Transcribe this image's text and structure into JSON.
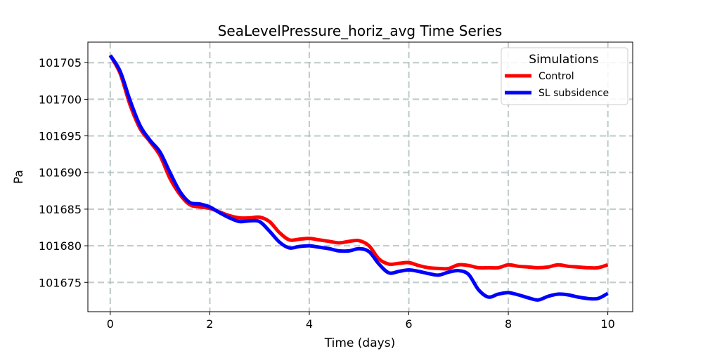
{
  "chart_data": {
    "type": "line",
    "title": "SeaLevelPressure_horiz_avg Time Series",
    "xlabel": "Time (days)",
    "ylabel": "Pa",
    "xlim": [
      -0.45,
      10.5
    ],
    "ylim": [
      101671.0,
      101707.8
    ],
    "xticks": [
      0,
      2,
      4,
      6,
      8,
      10
    ],
    "xtick_labels": [
      "0",
      "2",
      "4",
      "6",
      "8",
      "10"
    ],
    "yticks": [
      101675,
      101680,
      101685,
      101690,
      101695,
      101700,
      101705
    ],
    "ytick_labels": [
      "101675",
      "101680",
      "101685",
      "101690",
      "101695",
      "101700",
      "101705"
    ],
    "grid": true,
    "legend": {
      "title": "Simulations",
      "placement": "top-right"
    },
    "series": [
      {
        "name": "Control",
        "color": "#ff0000",
        "x": [
          0.0,
          0.2,
          0.4,
          0.6,
          0.8,
          1.0,
          1.2,
          1.4,
          1.6,
          1.8,
          2.0,
          2.2,
          2.4,
          2.6,
          2.8,
          3.0,
          3.2,
          3.4,
          3.6,
          3.8,
          4.0,
          4.2,
          4.4,
          4.6,
          4.8,
          5.0,
          5.2,
          5.4,
          5.6,
          5.8,
          6.0,
          6.2,
          6.4,
          6.6,
          6.8,
          7.0,
          7.2,
          7.4,
          7.6,
          7.8,
          8.0,
          8.2,
          8.4,
          8.6,
          8.8,
          9.0,
          9.2,
          9.4,
          9.6,
          9.8,
          10.0
        ],
        "y": [
          101706.0,
          101703.5,
          101699.2,
          101696.0,
          101694.2,
          101692.3,
          101689.2,
          101687.0,
          101685.6,
          101685.3,
          101685.1,
          101684.6,
          101684.1,
          101683.8,
          101683.8,
          101683.9,
          101683.3,
          101681.8,
          101680.8,
          101680.9,
          101681.0,
          101680.8,
          101680.6,
          101680.4,
          101680.6,
          101680.7,
          101680.0,
          101678.2,
          101677.5,
          101677.6,
          101677.7,
          101677.3,
          101677.0,
          101676.9,
          101676.9,
          101677.4,
          101677.3,
          101677.0,
          101677.0,
          101677.0,
          101677.4,
          101677.2,
          101677.1,
          101677.0,
          101677.1,
          101677.4,
          101677.2,
          101677.1,
          101677.0,
          101677.0,
          101677.4
        ]
      },
      {
        "name": "SL subsidence",
        "color": "#0000ff",
        "x": [
          0.0,
          0.2,
          0.4,
          0.6,
          0.8,
          1.0,
          1.2,
          1.4,
          1.6,
          1.8,
          2.0,
          2.2,
          2.4,
          2.6,
          2.8,
          3.0,
          3.2,
          3.4,
          3.6,
          3.8,
          4.0,
          4.2,
          4.4,
          4.6,
          4.8,
          5.0,
          5.2,
          5.4,
          5.6,
          5.8,
          6.0,
          6.2,
          6.4,
          6.6,
          6.8,
          7.0,
          7.2,
          7.4,
          7.6,
          7.8,
          8.0,
          8.2,
          8.4,
          8.6,
          8.8,
          9.0,
          9.2,
          9.4,
          9.6,
          9.8,
          10.0
        ],
        "y": [
          101706.0,
          101703.8,
          101699.8,
          101696.4,
          101694.4,
          101692.8,
          101690.0,
          101687.4,
          101685.9,
          101685.7,
          101685.3,
          101684.5,
          101683.8,
          101683.3,
          101683.4,
          101683.3,
          101682.0,
          101680.5,
          101679.7,
          101679.9,
          101680.0,
          101679.8,
          101679.6,
          101679.3,
          101679.3,
          101679.6,
          101679.2,
          101677.5,
          101676.3,
          101676.5,
          101676.7,
          101676.5,
          101676.2,
          101676.0,
          101676.4,
          101676.6,
          101676.1,
          101674.0,
          101673.0,
          101673.4,
          101673.6,
          101673.3,
          101672.9,
          101672.6,
          101673.1,
          101673.4,
          101673.3,
          101673.0,
          101672.8,
          101672.8,
          101673.5
        ]
      }
    ]
  }
}
